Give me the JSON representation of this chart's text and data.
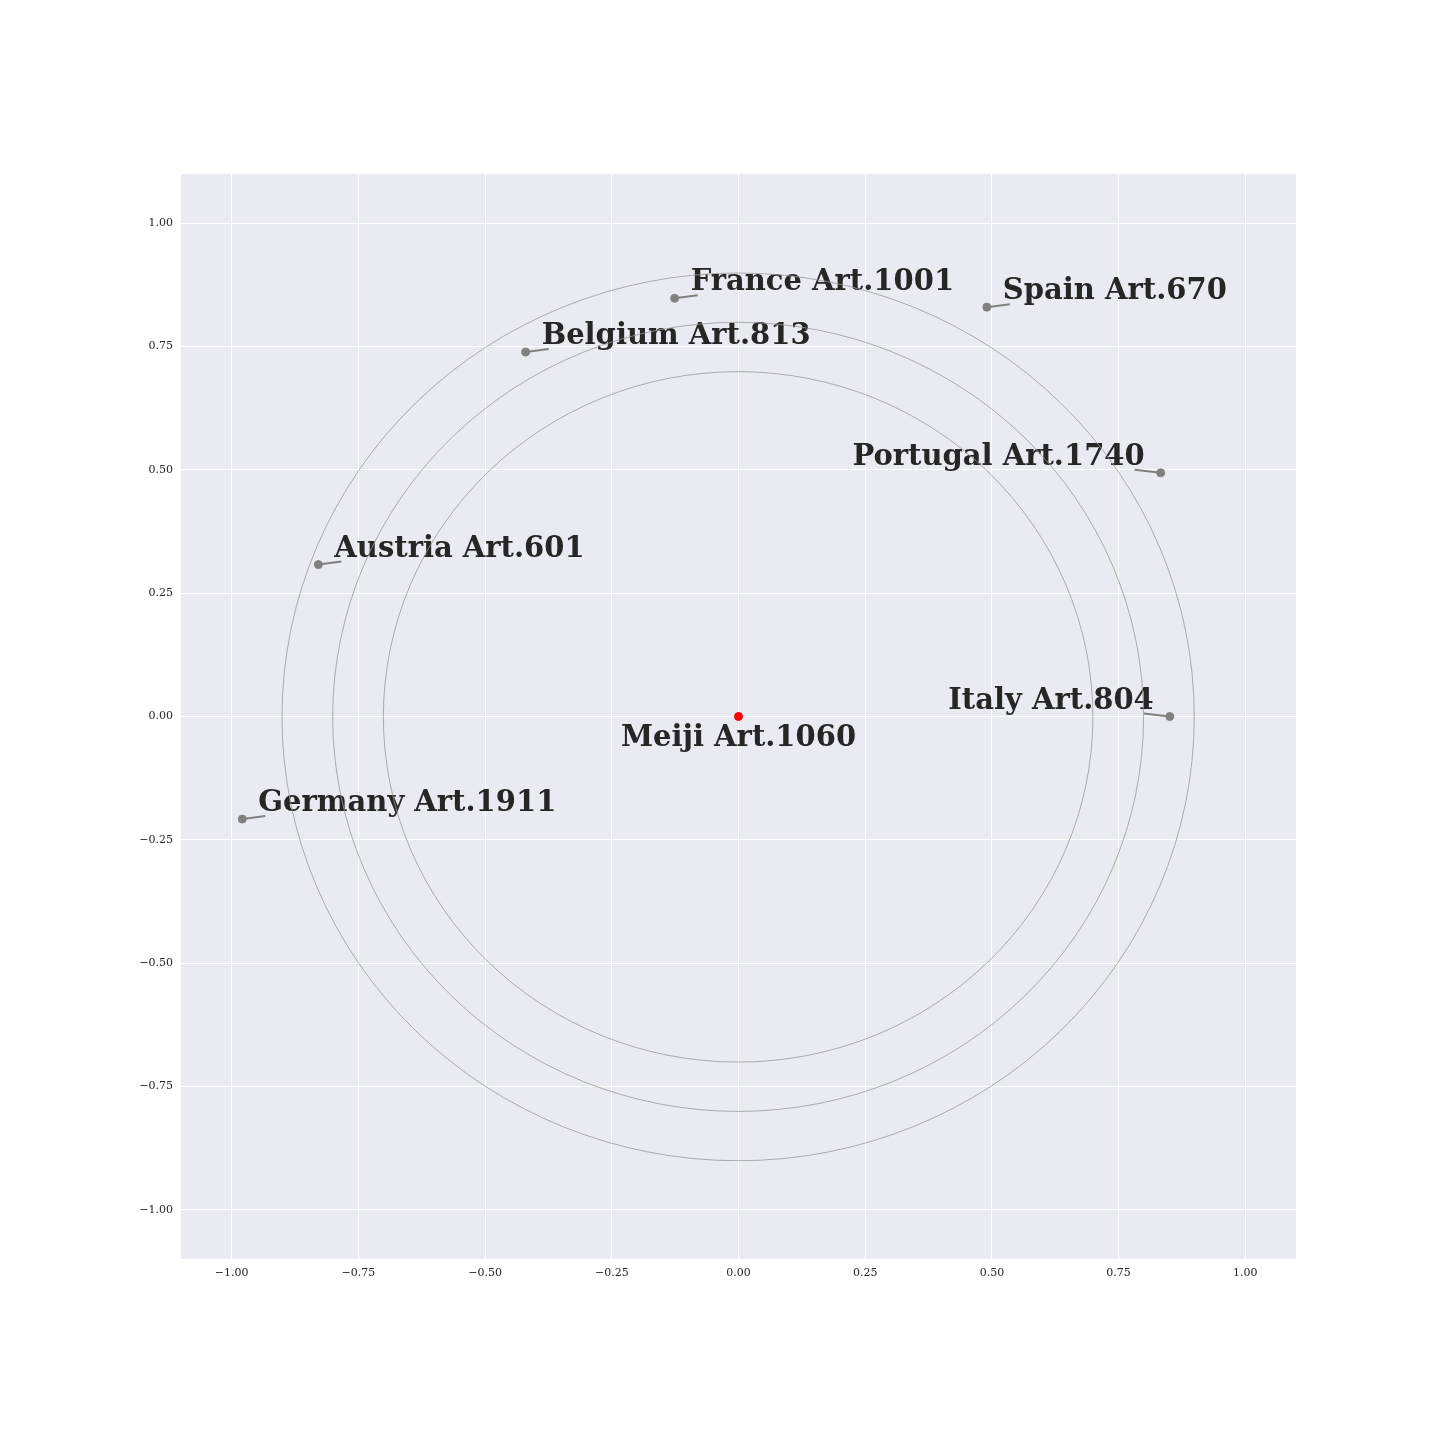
{
  "chart_data": {
    "type": "scatter",
    "xlim": [
      -1.1,
      1.1
    ],
    "ylim": [
      -1.1,
      1.1
    ],
    "xticks": [
      {
        "value": -1,
        "label": "−1.00"
      },
      {
        "value": -0.75,
        "label": "−0.75"
      },
      {
        "value": -0.5,
        "label": "−0.50"
      },
      {
        "value": -0.25,
        "label": "−0.25"
      },
      {
        "value": 0,
        "label": "0.00"
      },
      {
        "value": 0.25,
        "label": "0.25"
      },
      {
        "value": 0.5,
        "label": "0.50"
      },
      {
        "value": 0.75,
        "label": "0.75"
      },
      {
        "value": 1,
        "label": "1.00"
      }
    ],
    "yticks": [
      {
        "value": -1,
        "label": "−1.00"
      },
      {
        "value": -0.75,
        "label": "−0.75"
      },
      {
        "value": -0.5,
        "label": "−0.50"
      },
      {
        "value": -0.25,
        "label": "−0.25"
      },
      {
        "value": 0,
        "label": "0.00"
      },
      {
        "value": 0.25,
        "label": "0.25"
      },
      {
        "value": 0.5,
        "label": "0.50"
      },
      {
        "value": 0.75,
        "label": "0.75"
      },
      {
        "value": 1,
        "label": "1.00"
      }
    ],
    "grid": true,
    "marker": "circle",
    "series": [
      {
        "x": [
          0,
          -0.126,
          0.49,
          -0.42,
          0.833,
          -0.829,
          0.851,
          -0.979
        ],
        "values": [
          0,
          0.848,
          0.83,
          0.739,
          0.494,
          0.308,
          0,
          -0.208
        ],
        "colors": [
          "#ff0000",
          "#808080",
          "#808080",
          "#808080",
          "#808080",
          "#808080",
          "#808080",
          "#808080"
        ]
      }
    ],
    "annotations": [
      {
        "text": "Meiji Art.1060",
        "x": 0,
        "y": 0
      },
      {
        "text": "France Art.1001",
        "x": -0.126,
        "y": 0.848
      },
      {
        "text": "Spain Art.670",
        "x": 0.49,
        "y": 0.83
      },
      {
        "text": "Belgium Art.813",
        "x": -0.42,
        "y": 0.739
      },
      {
        "text": "Portugal Art.1740",
        "x": 0.833,
        "y": 0.494
      },
      {
        "text": "Austria Art.601",
        "x": -0.829,
        "y": 0.308
      },
      {
        "text": "Italy Art.804",
        "x": 0.851,
        "y": 0
      },
      {
        "text": "Germany Art.1911",
        "x": -0.979,
        "y": -0.208
      }
    ]
  }
}
